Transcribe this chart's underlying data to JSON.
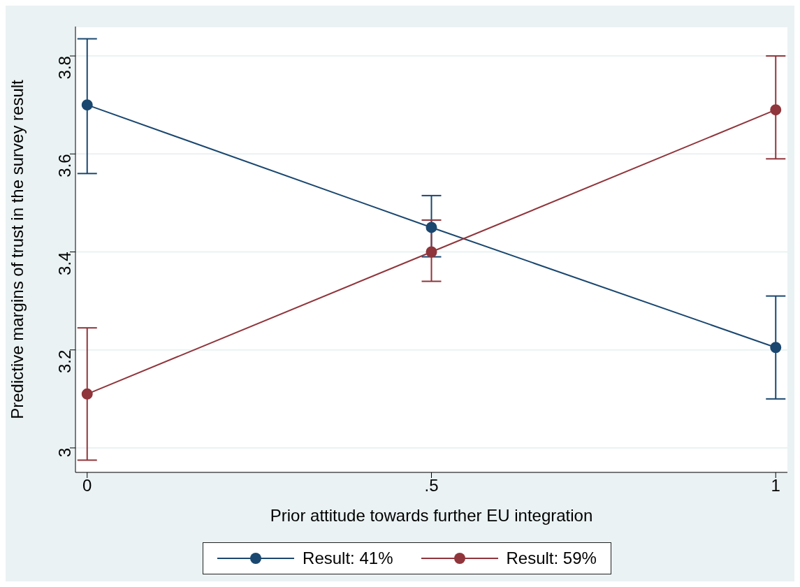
{
  "chart_data": {
    "type": "line",
    "xlabel": "Prior attitude towards further EU integration",
    "ylabel": "Predictive margins of trust in the survey result",
    "x": [
      0,
      0.5,
      1
    ],
    "series": [
      {
        "name": "Result: 41%",
        "color": "#1a476f",
        "values": [
          3.7,
          3.45,
          3.205
        ],
        "errors": [
          [
            3.56,
            3.835
          ],
          [
            3.39,
            3.515
          ],
          [
            3.1,
            3.31
          ]
        ]
      },
      {
        "name": "Result: 59%",
        "color": "#90353b",
        "values": [
          3.11,
          3.4,
          3.69
        ],
        "errors": [
          [
            2.975,
            3.245
          ],
          [
            3.34,
            3.465
          ],
          [
            3.59,
            3.8
          ]
        ]
      }
    ],
    "xlim": [
      -0.017,
      1.017
    ],
    "xticks": [
      0,
      {
        "value": 0.5,
        "label": ".5"
      },
      1
    ],
    "ylim": [
      2.95,
      3.86
    ],
    "yticks": [
      3,
      3.2,
      3.4,
      3.6,
      3.8
    ],
    "grid": "y",
    "legend": "bottom",
    "marker": "circle",
    "line_style": "solid"
  }
}
